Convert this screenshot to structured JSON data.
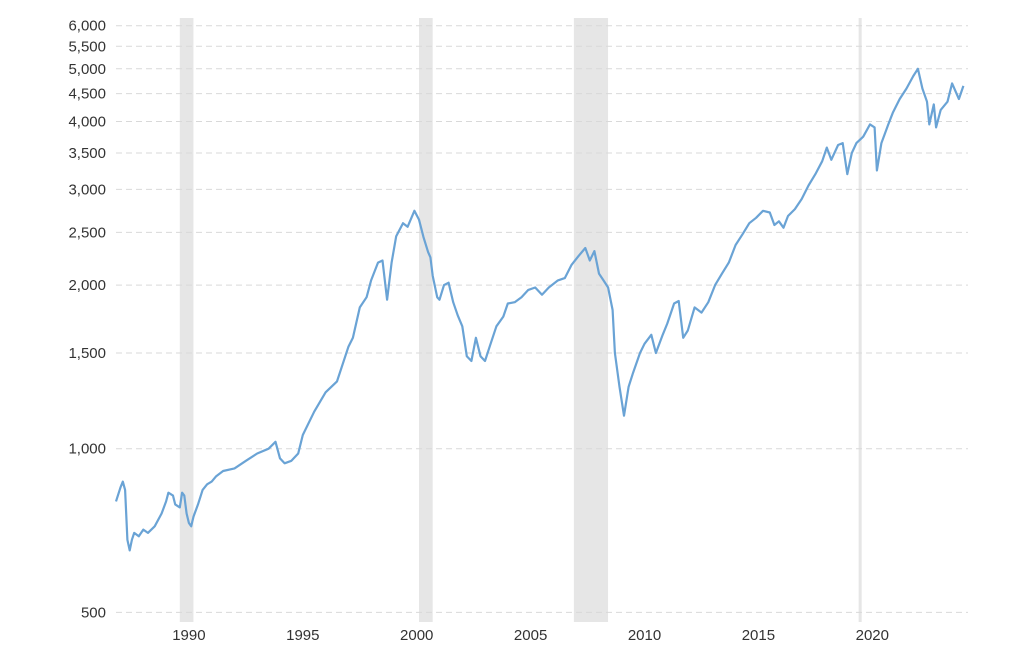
{
  "chart_data": {
    "type": "line",
    "title": "",
    "xlabel": "",
    "ylabel": "",
    "x_range": [
      1986.8,
      2024.2
    ],
    "y_scale": "log",
    "ylim": [
      480,
      6200
    ],
    "grid": "horizontal dashed",
    "legend": "none",
    "y_ticks": [
      {
        "value": 500,
        "label": "500"
      },
      {
        "value": 1000,
        "label": "1,000"
      },
      {
        "value": 1500,
        "label": "1,500"
      },
      {
        "value": 2000,
        "label": "2,000"
      },
      {
        "value": 2500,
        "label": "2,500"
      },
      {
        "value": 3000,
        "label": "3,000"
      },
      {
        "value": 3500,
        "label": "3,500"
      },
      {
        "value": 4000,
        "label": "4,000"
      },
      {
        "value": 4500,
        "label": "4,500"
      },
      {
        "value": 5000,
        "label": "5,000"
      },
      {
        "value": 5500,
        "label": "5,500"
      },
      {
        "value": 6000,
        "label": "6,000"
      }
    ],
    "x_ticks": [
      {
        "value": 1990,
        "label": "1990"
      },
      {
        "value": 1995,
        "label": "1995"
      },
      {
        "value": 2000,
        "label": "2000"
      },
      {
        "value": 2005,
        "label": "2005"
      },
      {
        "value": 2010,
        "label": "2010"
      },
      {
        "value": 2015,
        "label": "2015"
      },
      {
        "value": 2020,
        "label": "2020"
      }
    ],
    "recession_bands": [
      {
        "start": 1989.6,
        "end": 1990.2
      },
      {
        "start": 2000.1,
        "end": 2000.7
      },
      {
        "start": 2006.9,
        "end": 2008.4
      },
      {
        "start": 2019.4,
        "end": 2019.5
      }
    ],
    "colors": {
      "line": "#6aa3d5",
      "band": "#e6e6e6",
      "grid": "#d9d9d9",
      "text": "#333333"
    },
    "series": [
      {
        "points": [
          [
            1986.8,
            800
          ],
          [
            1987.0,
            850
          ],
          [
            1987.1,
            870
          ],
          [
            1987.2,
            840
          ],
          [
            1987.3,
            680
          ],
          [
            1987.4,
            650
          ],
          [
            1987.5,
            680
          ],
          [
            1987.6,
            700
          ],
          [
            1987.8,
            690
          ],
          [
            1988.0,
            710
          ],
          [
            1988.2,
            700
          ],
          [
            1988.5,
            720
          ],
          [
            1988.8,
            760
          ],
          [
            1989.0,
            800
          ],
          [
            1989.1,
            830
          ],
          [
            1989.3,
            820
          ],
          [
            1989.4,
            790
          ],
          [
            1989.6,
            780
          ],
          [
            1989.7,
            830
          ],
          [
            1989.8,
            820
          ],
          [
            1989.9,
            760
          ],
          [
            1990.0,
            730
          ],
          [
            1990.1,
            720
          ],
          [
            1990.2,
            750
          ],
          [
            1990.4,
            790
          ],
          [
            1990.6,
            840
          ],
          [
            1990.8,
            860
          ],
          [
            1991.0,
            870
          ],
          [
            1991.2,
            890
          ],
          [
            1991.5,
            910
          ],
          [
            1992.0,
            920
          ],
          [
            1992.5,
            950
          ],
          [
            1993.0,
            980
          ],
          [
            1993.5,
            1000
          ],
          [
            1993.8,
            1030
          ],
          [
            1994.0,
            960
          ],
          [
            1994.2,
            940
          ],
          [
            1994.5,
            950
          ],
          [
            1994.8,
            980
          ],
          [
            1995.0,
            1060
          ],
          [
            1995.5,
            1170
          ],
          [
            1996.0,
            1270
          ],
          [
            1996.5,
            1330
          ],
          [
            1997.0,
            1540
          ],
          [
            1997.2,
            1600
          ],
          [
            1997.5,
            1820
          ],
          [
            1997.8,
            1900
          ],
          [
            1998.0,
            2040
          ],
          [
            1998.3,
            2200
          ],
          [
            1998.5,
            2220
          ],
          [
            1998.7,
            1880
          ],
          [
            1998.9,
            2200
          ],
          [
            1999.1,
            2460
          ],
          [
            1999.4,
            2600
          ],
          [
            1999.6,
            2560
          ],
          [
            1999.9,
            2740
          ],
          [
            2000.1,
            2640
          ],
          [
            2000.3,
            2450
          ],
          [
            2000.5,
            2300
          ],
          [
            2000.6,
            2250
          ],
          [
            2000.7,
            2080
          ],
          [
            2000.9,
            1900
          ],
          [
            2001.0,
            1880
          ],
          [
            2001.2,
            2000
          ],
          [
            2001.4,
            2020
          ],
          [
            2001.6,
            1860
          ],
          [
            2001.8,
            1760
          ],
          [
            2002.0,
            1680
          ],
          [
            2002.2,
            1480
          ],
          [
            2002.4,
            1450
          ],
          [
            2002.6,
            1600
          ],
          [
            2002.8,
            1480
          ],
          [
            2003.0,
            1450
          ],
          [
            2003.2,
            1540
          ],
          [
            2003.5,
            1680
          ],
          [
            2003.8,
            1750
          ],
          [
            2004.0,
            1850
          ],
          [
            2004.3,
            1860
          ],
          [
            2004.6,
            1900
          ],
          [
            2004.9,
            1960
          ],
          [
            2005.2,
            1980
          ],
          [
            2005.5,
            1920
          ],
          [
            2005.8,
            1980
          ],
          [
            2006.2,
            2040
          ],
          [
            2006.5,
            2060
          ],
          [
            2006.8,
            2180
          ],
          [
            2007.1,
            2260
          ],
          [
            2007.4,
            2340
          ],
          [
            2007.6,
            2220
          ],
          [
            2007.8,
            2310
          ],
          [
            2008.0,
            2100
          ],
          [
            2008.2,
            2040
          ],
          [
            2008.4,
            1980
          ],
          [
            2008.6,
            1800
          ],
          [
            2008.7,
            1500
          ],
          [
            2008.9,
            1300
          ],
          [
            2009.1,
            1150
          ],
          [
            2009.3,
            1300
          ],
          [
            2009.5,
            1380
          ],
          [
            2009.8,
            1500
          ],
          [
            2010.0,
            1560
          ],
          [
            2010.3,
            1620
          ],
          [
            2010.5,
            1500
          ],
          [
            2010.8,
            1620
          ],
          [
            2011.0,
            1700
          ],
          [
            2011.3,
            1850
          ],
          [
            2011.5,
            1870
          ],
          [
            2011.7,
            1600
          ],
          [
            2011.9,
            1650
          ],
          [
            2012.2,
            1820
          ],
          [
            2012.5,
            1780
          ],
          [
            2012.8,
            1860
          ],
          [
            2013.1,
            2000
          ],
          [
            2013.4,
            2100
          ],
          [
            2013.7,
            2200
          ],
          [
            2014.0,
            2370
          ],
          [
            2014.3,
            2480
          ],
          [
            2014.6,
            2600
          ],
          [
            2014.9,
            2660
          ],
          [
            2015.2,
            2740
          ],
          [
            2015.5,
            2720
          ],
          [
            2015.7,
            2580
          ],
          [
            2015.9,
            2620
          ],
          [
            2016.1,
            2550
          ],
          [
            2016.3,
            2680
          ],
          [
            2016.6,
            2760
          ],
          [
            2016.9,
            2880
          ],
          [
            2017.2,
            3050
          ],
          [
            2017.5,
            3200
          ],
          [
            2017.8,
            3380
          ],
          [
            2018.0,
            3580
          ],
          [
            2018.2,
            3400
          ],
          [
            2018.5,
            3620
          ],
          [
            2018.7,
            3650
          ],
          [
            2018.9,
            3200
          ],
          [
            2019.1,
            3500
          ],
          [
            2019.3,
            3650
          ],
          [
            2019.6,
            3750
          ],
          [
            2019.9,
            3950
          ],
          [
            2020.1,
            3900
          ],
          [
            2020.2,
            3250
          ],
          [
            2020.4,
            3650
          ],
          [
            2020.7,
            3950
          ],
          [
            2020.9,
            4150
          ],
          [
            2021.2,
            4400
          ],
          [
            2021.5,
            4600
          ],
          [
            2021.8,
            4850
          ],
          [
            2022.0,
            5000
          ],
          [
            2022.2,
            4600
          ],
          [
            2022.4,
            4350
          ],
          [
            2022.5,
            3950
          ],
          [
            2022.7,
            4300
          ],
          [
            2022.8,
            3900
          ],
          [
            2023.0,
            4200
          ],
          [
            2023.3,
            4350
          ],
          [
            2023.5,
            4700
          ],
          [
            2023.8,
            4400
          ],
          [
            2024.0,
            4650
          ]
        ]
      }
    ]
  }
}
